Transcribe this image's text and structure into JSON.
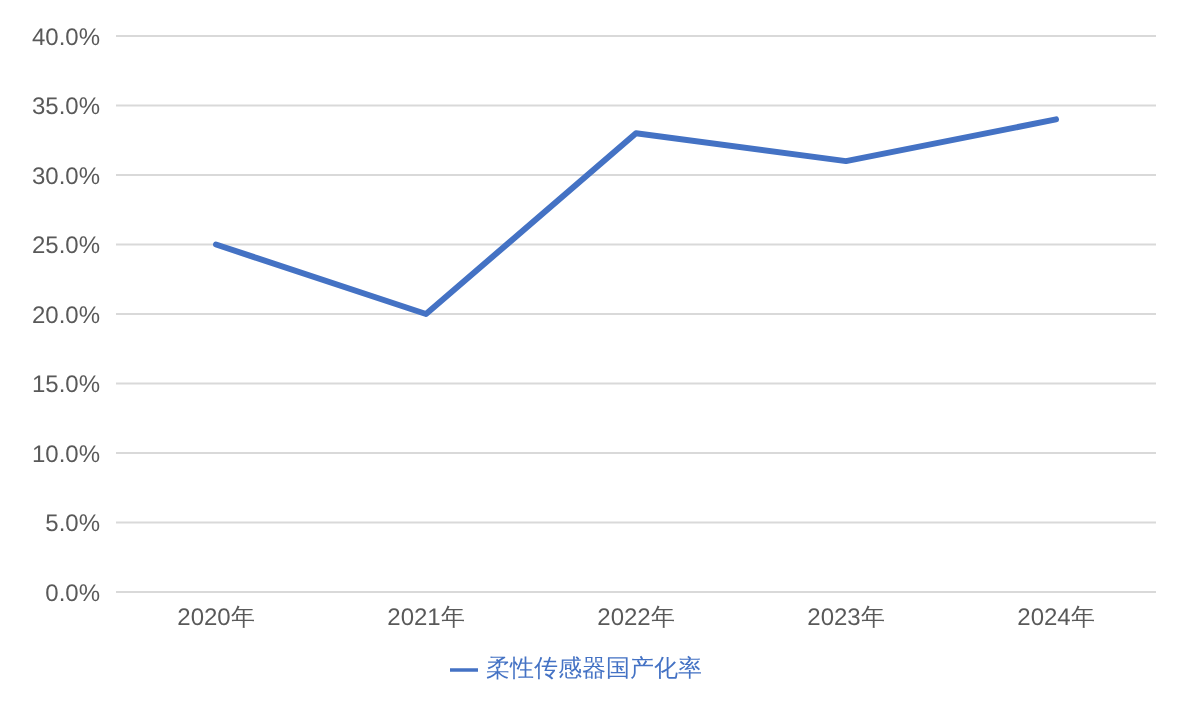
{
  "chart_data": {
    "type": "line",
    "categories": [
      "2020年",
      "2021年",
      "2022年",
      "2023年",
      "2024年"
    ],
    "series": [
      {
        "name": "柔性传感器国产化率",
        "color": "#4472c4",
        "values": [
          25,
          20,
          33,
          31,
          34
        ]
      }
    ],
    "ylim": [
      0,
      40
    ],
    "yticks": [
      {
        "value": 0,
        "label": "0.0%"
      },
      {
        "value": 5,
        "label": "5.0%"
      },
      {
        "value": 10,
        "label": "10.0%"
      },
      {
        "value": 15,
        "label": "15.0%"
      },
      {
        "value": 20,
        "label": "20.0%"
      },
      {
        "value": 25,
        "label": "25.0%"
      },
      {
        "value": 30,
        "label": "30.0%"
      },
      {
        "value": 35,
        "label": "35.0%"
      },
      {
        "value": 40,
        "label": "40.0%"
      }
    ],
    "grid": "y",
    "legend": "bottom",
    "marker": "none",
    "line_style": "solid"
  }
}
